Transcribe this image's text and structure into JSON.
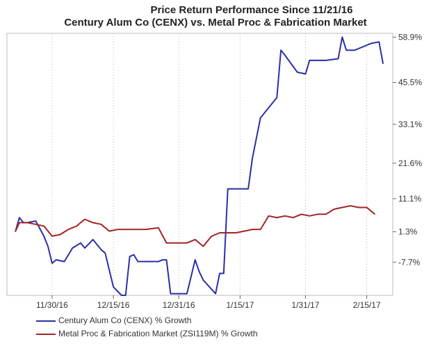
{
  "chart_data": {
    "type": "line",
    "title": "Price Return Performance Since 11/21/16",
    "subtitle": "Century Alum Co (CENX)   vs.  Metal Proc & Fabrication Market",
    "xlabel": "",
    "ylabel": "",
    "x_ticks": [
      "11/30/16",
      "12/15/16",
      "12/31/16",
      "1/15/17",
      "1/31/17",
      "2/15/17"
    ],
    "y_ticks": [
      "58.9%",
      "45.5%",
      "33.1%",
      "21.6%",
      "11.1%",
      "1.3%",
      "-7.7%"
    ],
    "y_tick_values": [
      58.9,
      45.5,
      33.1,
      21.6,
      11.1,
      1.3,
      -7.7
    ],
    "ylim": [
      -17.5,
      60
    ],
    "grid": "vertical dotted",
    "legend_position": "bottom-left",
    "series": [
      {
        "name": "Century Alum Co (CENX) % Growth",
        "color": "#2b2fa6",
        "x": [
          "11/21/16",
          "11/22/16",
          "11/23/16",
          "11/24/16",
          "11/26/16",
          "11/28/16",
          "11/29/16",
          "11/30/16",
          "12/1/16",
          "12/3/16",
          "12/5/16",
          "12/7/16",
          "12/8/16",
          "12/10/16",
          "12/12/16",
          "12/13/16",
          "12/15/16",
          "12/17/16",
          "12/18/16",
          "12/19/16",
          "12/20/16",
          "12/21/16",
          "12/23/16",
          "12/26/16",
          "12/27/16",
          "12/28/16",
          "12/29/16",
          "12/31/16",
          "1/2/17",
          "1/4/17",
          "1/5/17",
          "1/6/17",
          "1/9/17",
          "1/10/17",
          "1/11/17",
          "1/12/17",
          "1/14/17",
          "1/17/17",
          "1/18/17",
          "1/20/17",
          "1/22/17",
          "1/24/17",
          "1/25/17",
          "1/26/17",
          "1/29/17",
          "1/31/17",
          "2/1/17",
          "2/2/17",
          "2/5/17",
          "2/8/17",
          "2/9/17",
          "2/10/17",
          "2/12/17",
          "2/14/17",
          "2/16/17",
          "2/18/17",
          "2/19/17"
        ],
        "values": [
          1.3,
          5.5,
          4.0,
          4.0,
          4.5,
          0.0,
          -3.0,
          -8.0,
          -7.0,
          -7.5,
          -3.5,
          -2.0,
          -3.5,
          -1.0,
          -4.0,
          -5.0,
          -15.0,
          -17.5,
          -17.5,
          -6.0,
          -5.5,
          -7.5,
          -7.5,
          -7.5,
          -7.0,
          -7.0,
          -17.0,
          -17.0,
          -17.0,
          -7.0,
          -10.5,
          -13.0,
          -17.0,
          -11.0,
          -11.0,
          14.0,
          14.0,
          14.0,
          23.0,
          35.0,
          38.0,
          41.0,
          55.0,
          53.5,
          48.5,
          48.0,
          52.0,
          52.0,
          52.0,
          52.5,
          58.9,
          55.0,
          55.0,
          56.0,
          57.0,
          57.5,
          51.0
        ]
      },
      {
        "name": "Metal Proc & Fabrication Market (ZSI119M) % Growth",
        "color": "#a32424",
        "x": [
          "11/21/16",
          "11/22/16",
          "11/24/16",
          "11/26/16",
          "11/28/16",
          "11/30/16",
          "12/2/16",
          "12/4/16",
          "12/6/16",
          "12/8/16",
          "12/10/16",
          "12/12/16",
          "12/14/16",
          "12/16/16",
          "12/18/16",
          "12/20/16",
          "12/23/16",
          "12/26/16",
          "12/28/16",
          "12/31/16",
          "1/2/17",
          "1/4/17",
          "1/6/17",
          "1/8/17",
          "1/10/17",
          "1/12/17",
          "1/14/17",
          "1/16/17",
          "1/18/17",
          "1/20/17",
          "1/22/17",
          "1/24/17",
          "1/26/17",
          "1/28/17",
          "1/30/17",
          "2/1/17",
          "2/3/17",
          "2/5/17",
          "2/7/17",
          "2/9/17",
          "2/11/17",
          "2/13/17",
          "2/15/17",
          "2/17/17"
        ],
        "values": [
          1.3,
          4.0,
          4.0,
          3.5,
          3.0,
          0.0,
          0.5,
          2.0,
          3.0,
          5.0,
          4.0,
          3.5,
          1.5,
          2.0,
          2.0,
          2.0,
          2.0,
          2.5,
          -2.0,
          -2.0,
          -2.0,
          -1.0,
          -3.0,
          0.0,
          1.0,
          1.0,
          1.0,
          1.5,
          2.0,
          2.0,
          6.0,
          5.5,
          6.0,
          5.5,
          6.5,
          6.0,
          6.5,
          6.5,
          8.0,
          8.5,
          9.0,
          8.5,
          8.5,
          6.5
        ]
      }
    ]
  }
}
